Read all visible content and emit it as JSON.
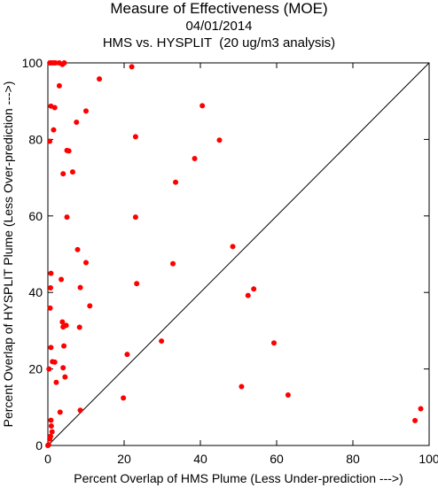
{
  "titles": {
    "line1": "Measure of Effectiveness (MOE)",
    "line2": "04/01/2014",
    "line3": "HMS vs. HYSPLIT  (20 ug/m3 analysis)"
  },
  "chart_data": {
    "type": "scatter",
    "xlabel": "Percent Overlap of HMS Plume (Less Under-prediction --->)",
    "ylabel": "Percent Overlap of HYSPLIT Plume (Less Over-prediction --->)",
    "xlim": [
      0,
      100
    ],
    "ylim": [
      0,
      100
    ],
    "xticks": [
      0,
      20,
      40,
      60,
      80,
      100
    ],
    "yticks": [
      0,
      20,
      40,
      60,
      80,
      100
    ],
    "grid": false,
    "reference_line": {
      "from": [
        0,
        0
      ],
      "to": [
        100,
        100
      ]
    },
    "point_color": "#ff0000",
    "points": [
      [
        0.5,
        100
      ],
      [
        1.0,
        100
      ],
      [
        1.5,
        100
      ],
      [
        2.0,
        100
      ],
      [
        3.0,
        100
      ],
      [
        3.8,
        99.6
      ],
      [
        4.3,
        100
      ],
      [
        22.0,
        99.0
      ],
      [
        13.5,
        95.8
      ],
      [
        3.0,
        94.0
      ],
      [
        0.8,
        88.7
      ],
      [
        1.8,
        88.3
      ],
      [
        10.0,
        87.4
      ],
      [
        40.5,
        88.8
      ],
      [
        7.5,
        84.5
      ],
      [
        1.5,
        82.5
      ],
      [
        23.0,
        80.7
      ],
      [
        45.0,
        79.8
      ],
      [
        0.5,
        79.5
      ],
      [
        5.0,
        77.1
      ],
      [
        5.5,
        77.0
      ],
      [
        38.5,
        75.0
      ],
      [
        6.5,
        71.5
      ],
      [
        4.0,
        71.0
      ],
      [
        33.5,
        68.8
      ],
      [
        5.0,
        59.7
      ],
      [
        23.0,
        59.7
      ],
      [
        48.5,
        52.0
      ],
      [
        7.8,
        51.2
      ],
      [
        10.0,
        47.8
      ],
      [
        32.8,
        47.5
      ],
      [
        0.8,
        45.0
      ],
      [
        3.5,
        43.4
      ],
      [
        23.3,
        42.3
      ],
      [
        8.5,
        41.3
      ],
      [
        0.7,
        41.2
      ],
      [
        54.0,
        40.9
      ],
      [
        52.5,
        39.2
      ],
      [
        11.0,
        36.5
      ],
      [
        0.6,
        35.9
      ],
      [
        3.8,
        32.3
      ],
      [
        4.8,
        31.4
      ],
      [
        4.0,
        31.0
      ],
      [
        8.3,
        30.9
      ],
      [
        29.8,
        27.3
      ],
      [
        59.3,
        26.8
      ],
      [
        4.2,
        26.0
      ],
      [
        0.8,
        25.6
      ],
      [
        20.8,
        23.8
      ],
      [
        1.2,
        21.9
      ],
      [
        1.8,
        21.8
      ],
      [
        0.3,
        20.0
      ],
      [
        4.0,
        20.3
      ],
      [
        4.5,
        17.9
      ],
      [
        2.2,
        16.5
      ],
      [
        50.8,
        15.4
      ],
      [
        63.0,
        13.2
      ],
      [
        19.8,
        12.4
      ],
      [
        97.8,
        9.6
      ],
      [
        8.5,
        9.2
      ],
      [
        3.2,
        8.7
      ],
      [
        96.3,
        6.5
      ],
      [
        0.8,
        6.6
      ],
      [
        0.9,
        5.1
      ],
      [
        1.1,
        3.6
      ],
      [
        0.7,
        2.4
      ],
      [
        0.5,
        1.7
      ],
      [
        0.2,
        0.2
      ],
      [
        0.0,
        0.0
      ]
    ]
  }
}
